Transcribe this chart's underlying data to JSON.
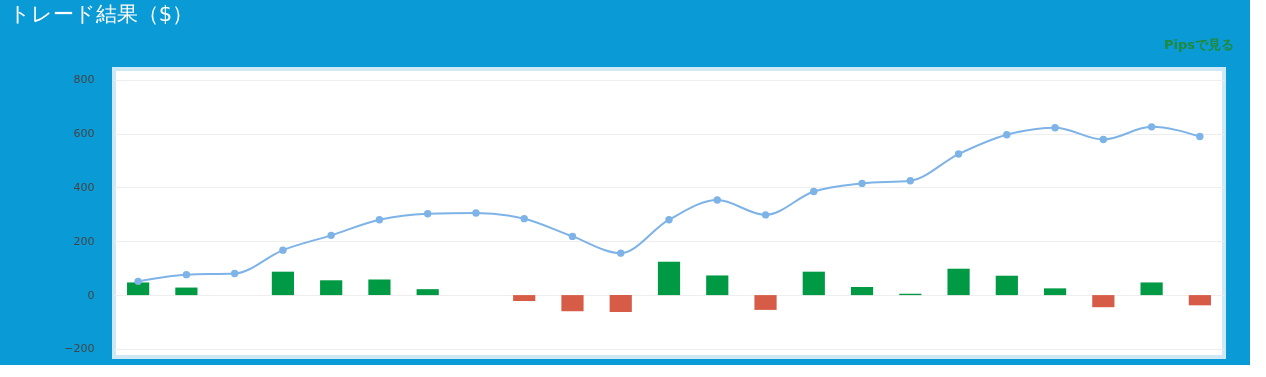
{
  "chart_data": {
    "type": "bar",
    "title": "トレード結果（$）",
    "annotations": [
      "Pipsで見る"
    ],
    "categories": [
      null,
      null,
      null,
      null,
      null,
      null,
      null,
      null,
      null,
      null,
      null,
      null,
      null,
      null,
      null,
      null,
      null,
      null,
      null,
      null,
      null,
      null,
      null
    ],
    "series": [
      {
        "colors": [
          "#009944",
          "#009944",
          "#009944",
          "#009944",
          "#009944",
          "#009944",
          "#009944",
          "#009944",
          "#d65c47",
          "#d65c47",
          "#d65c47",
          "#009944",
          "#009944",
          "#d65c47",
          "#009944",
          "#009944",
          "#009944",
          "#009944",
          "#009944",
          "#009944",
          "#d65c47",
          "#009944",
          "#d65c47"
        ],
        "values": [
          47,
          28,
          0,
          87,
          55,
          58,
          22,
          0,
          -22,
          -60,
          -63,
          124,
          73,
          -55,
          87,
          30,
          5,
          98,
          72,
          25,
          -45,
          47,
          -38
        ]
      },
      {
        "type": "line",
        "color": "#7db3e6",
        "values": [
          51,
          76,
          80,
          167,
          222,
          280,
          302,
          305,
          284,
          218,
          156,
          280,
          353,
          298,
          385,
          415,
          425,
          524,
          596,
          622,
          578,
          625,
          589
        ]
      }
    ],
    "ylim": [
      -230,
      840
    ],
    "yticks": [
      -200,
      0,
      200,
      400,
      600,
      800
    ],
    "grid": "y",
    "marker": "circle",
    "tick_labels": "y"
  }
}
